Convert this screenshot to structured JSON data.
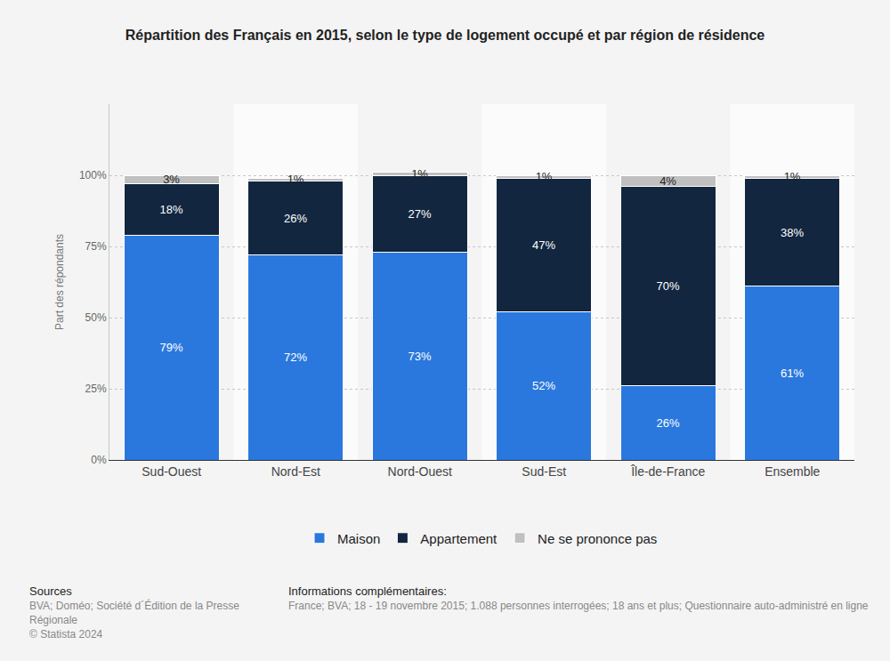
{
  "chart_data": {
    "type": "bar",
    "title": "Répartition des Français en 2015, selon le type de logement occupé et par région de résidence",
    "y_label": "Part des répondants",
    "categories": [
      "Sud-Ouest",
      "Nord-Est",
      "Nord-Ouest",
      "Sud-Est",
      "Île-de-France",
      "Ensemble"
    ],
    "series": [
      {
        "name": "Maison",
        "color": "#2a78de",
        "values": [
          79,
          72,
          73,
          52,
          26,
          61
        ],
        "value_labels": [
          "79%",
          "72%",
          "73%",
          "52%",
          "26%",
          "61%"
        ]
      },
      {
        "name": "Appartement",
        "color": "#12263f",
        "values": [
          18,
          26,
          27,
          47,
          70,
          38
        ],
        "value_labels": [
          "18%",
          "26%",
          "27%",
          "47%",
          "70%",
          "38%"
        ]
      },
      {
        "name": "Ne se prononce pas",
        "color": "#c0c0c0",
        "values": [
          3,
          1,
          1,
          1,
          4,
          1
        ],
        "value_labels": [
          "3%",
          "1%",
          "1%",
          "1%",
          "4%",
          "1%"
        ]
      }
    ],
    "ylim": [
      0,
      125
    ],
    "yticks": [
      {
        "value": 0,
        "label": "0%"
      },
      {
        "value": 25,
        "label": "25%"
      },
      {
        "value": 50,
        "label": "50%"
      },
      {
        "value": 75,
        "label": "75%"
      },
      {
        "value": 100,
        "label": "100%"
      }
    ],
    "grid": true,
    "stacked": true,
    "data_labels": true,
    "legend": "bottom"
  },
  "footer": {
    "sources_title": "Sources",
    "sources": "BVA; Doméo; Société d´Édition de la Presse Régionale",
    "copyright": "© Statista 2024",
    "info_title": "Informations complémentaires:",
    "info": "France; BVA; 18 - 19 novembre 2015; 1.088 personnes interrogées; 18 ans et plus; Questionnaire auto-administré en ligne"
  }
}
